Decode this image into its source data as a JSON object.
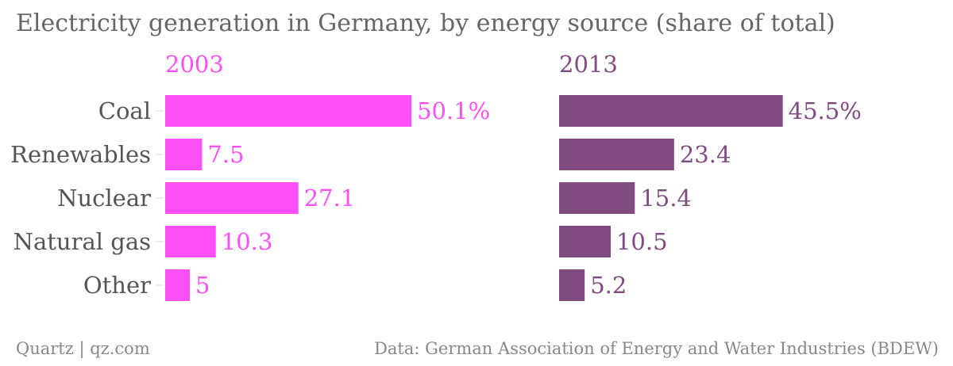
{
  "chart_data": {
    "type": "bar",
    "title": "Electricity generation in Germany, by energy source (share of total)",
    "categories": [
      "Coal",
      "Renewables",
      "Nuclear",
      "Natural gas",
      "Other"
    ],
    "series": [
      {
        "name": "2003",
        "values": [
          50.1,
          7.5,
          27.1,
          10.3,
          5
        ],
        "labels": [
          "50.1%",
          "7.5",
          "27.1",
          "10.3",
          "5"
        ],
        "color": "#ff4ff8"
      },
      {
        "name": "2013",
        "values": [
          45.5,
          23.4,
          15.4,
          10.5,
          5.2
        ],
        "labels": [
          "45.5%",
          "23.4",
          "15.4",
          "10.5",
          "5.2"
        ],
        "color": "#7f4b80"
      }
    ],
    "orientation": "horizontal",
    "layout": "small-multiples",
    "grid": false
  },
  "footer": {
    "source_left": "Quartz | qz.com",
    "source_right": "Data: German Association of Energy and Water Industries (BDEW)"
  }
}
